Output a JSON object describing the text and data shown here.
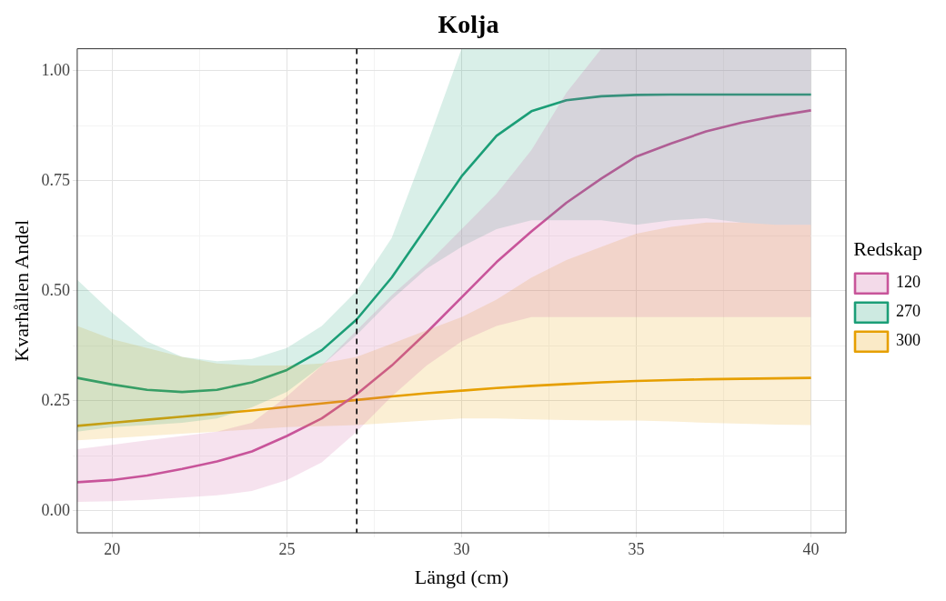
{
  "chart_data": {
    "type": "line",
    "title": "Kolja",
    "xlabel": "Längd (cm)",
    "ylabel": "Kvarhållen Andel",
    "legend_title": "Redskap",
    "legend": "right",
    "grid": true,
    "marker": "none",
    "line_style": "solid",
    "x": [
      19,
      20,
      21,
      22,
      23,
      24,
      25,
      26,
      27,
      28,
      29,
      30,
      31,
      32,
      33,
      34,
      35,
      36,
      37,
      38,
      39,
      40
    ],
    "xlim": [
      19,
      41
    ],
    "xticks": [
      20,
      {
        "value": 22.5,
        "label": null
      },
      25,
      {
        "value": 27.5,
        "label": null
      },
      30,
      {
        "value": 32.5,
        "label": null
      },
      35,
      {
        "value": 37.5,
        "label": null
      },
      40
    ],
    "ylim": [
      -0.05,
      1.05
    ],
    "yticks": [
      {
        "value": 0,
        "label": "0.00"
      },
      {
        "value": 0.125,
        "label": null
      },
      {
        "value": 0.25,
        "label": "0.25"
      },
      {
        "value": 0.375,
        "label": null
      },
      {
        "value": 0.5,
        "label": "0.50"
      },
      {
        "value": 0.625,
        "label": null
      },
      {
        "value": 0.75,
        "label": "0.75"
      },
      {
        "value": 0.875,
        "label": null
      },
      {
        "value": 1,
        "label": "1.00"
      }
    ],
    "ref_lines": [
      {
        "axis": "x",
        "value": 27,
        "color": "#000000",
        "line_style": "dashed"
      }
    ],
    "series": [
      {
        "name": "120",
        "color": "#c8559a",
        "values": [
          0.065,
          0.07,
          0.08,
          0.095,
          0.112,
          0.135,
          0.17,
          0.21,
          0.265,
          0.33,
          0.405,
          0.485,
          0.565,
          0.635,
          0.7,
          0.755,
          0.805,
          0.835,
          0.862,
          0.882,
          0.897,
          0.91
        ],
        "lower": [
          0.02,
          0.022,
          0.025,
          0.03,
          0.035,
          0.045,
          0.07,
          0.11,
          0.18,
          0.26,
          0.33,
          0.385,
          0.42,
          0.44,
          0.44,
          0.44,
          0.44,
          0.44,
          0.44,
          0.44,
          0.44,
          0.44
        ],
        "upper": [
          0.14,
          0.15,
          0.16,
          0.17,
          0.18,
          0.2,
          0.26,
          0.33,
          0.41,
          0.49,
          0.56,
          0.64,
          0.72,
          0.82,
          0.95,
          1.05,
          1.05,
          1.05,
          1.05,
          1.05,
          1.05,
          1.05
        ]
      },
      {
        "name": "270",
        "color": "#1b9e77",
        "values": [
          0.302,
          0.287,
          0.275,
          0.27,
          0.275,
          0.292,
          0.32,
          0.365,
          0.435,
          0.53,
          0.645,
          0.76,
          0.852,
          0.908,
          0.933,
          0.942,
          0.945,
          0.946,
          0.946,
          0.946,
          0.946,
          0.946
        ],
        "lower": [
          0.18,
          0.19,
          0.195,
          0.2,
          0.21,
          0.235,
          0.27,
          0.33,
          0.4,
          0.48,
          0.55,
          0.6,
          0.64,
          0.66,
          0.66,
          0.66,
          0.65,
          0.66,
          0.665,
          0.655,
          0.65,
          0.65
        ],
        "upper": [
          0.525,
          0.45,
          0.385,
          0.35,
          0.34,
          0.345,
          0.37,
          0.42,
          0.5,
          0.62,
          0.83,
          1.05,
          1.05,
          1.05,
          1.05,
          1.05,
          1.05,
          1.05,
          1.05,
          1.05,
          1.05,
          1.05
        ]
      },
      {
        "name": "300",
        "color": "#e69f00",
        "values": [
          0.193,
          0.2,
          0.207,
          0.214,
          0.221,
          0.228,
          0.236,
          0.244,
          0.252,
          0.26,
          0.267,
          0.273,
          0.279,
          0.284,
          0.288,
          0.292,
          0.295,
          0.297,
          0.299,
          0.3,
          0.301,
          0.302
        ],
        "lower": [
          0.16,
          0.165,
          0.17,
          0.175,
          0.18,
          0.185,
          0.19,
          0.192,
          0.195,
          0.2,
          0.205,
          0.21,
          0.21,
          0.208,
          0.206,
          0.205,
          0.205,
          0.203,
          0.2,
          0.198,
          0.196,
          0.195
        ],
        "upper": [
          0.42,
          0.39,
          0.37,
          0.35,
          0.335,
          0.33,
          0.33,
          0.335,
          0.35,
          0.38,
          0.41,
          0.44,
          0.48,
          0.53,
          0.57,
          0.6,
          0.63,
          0.645,
          0.655,
          0.655,
          0.65,
          0.65
        ]
      }
    ]
  }
}
